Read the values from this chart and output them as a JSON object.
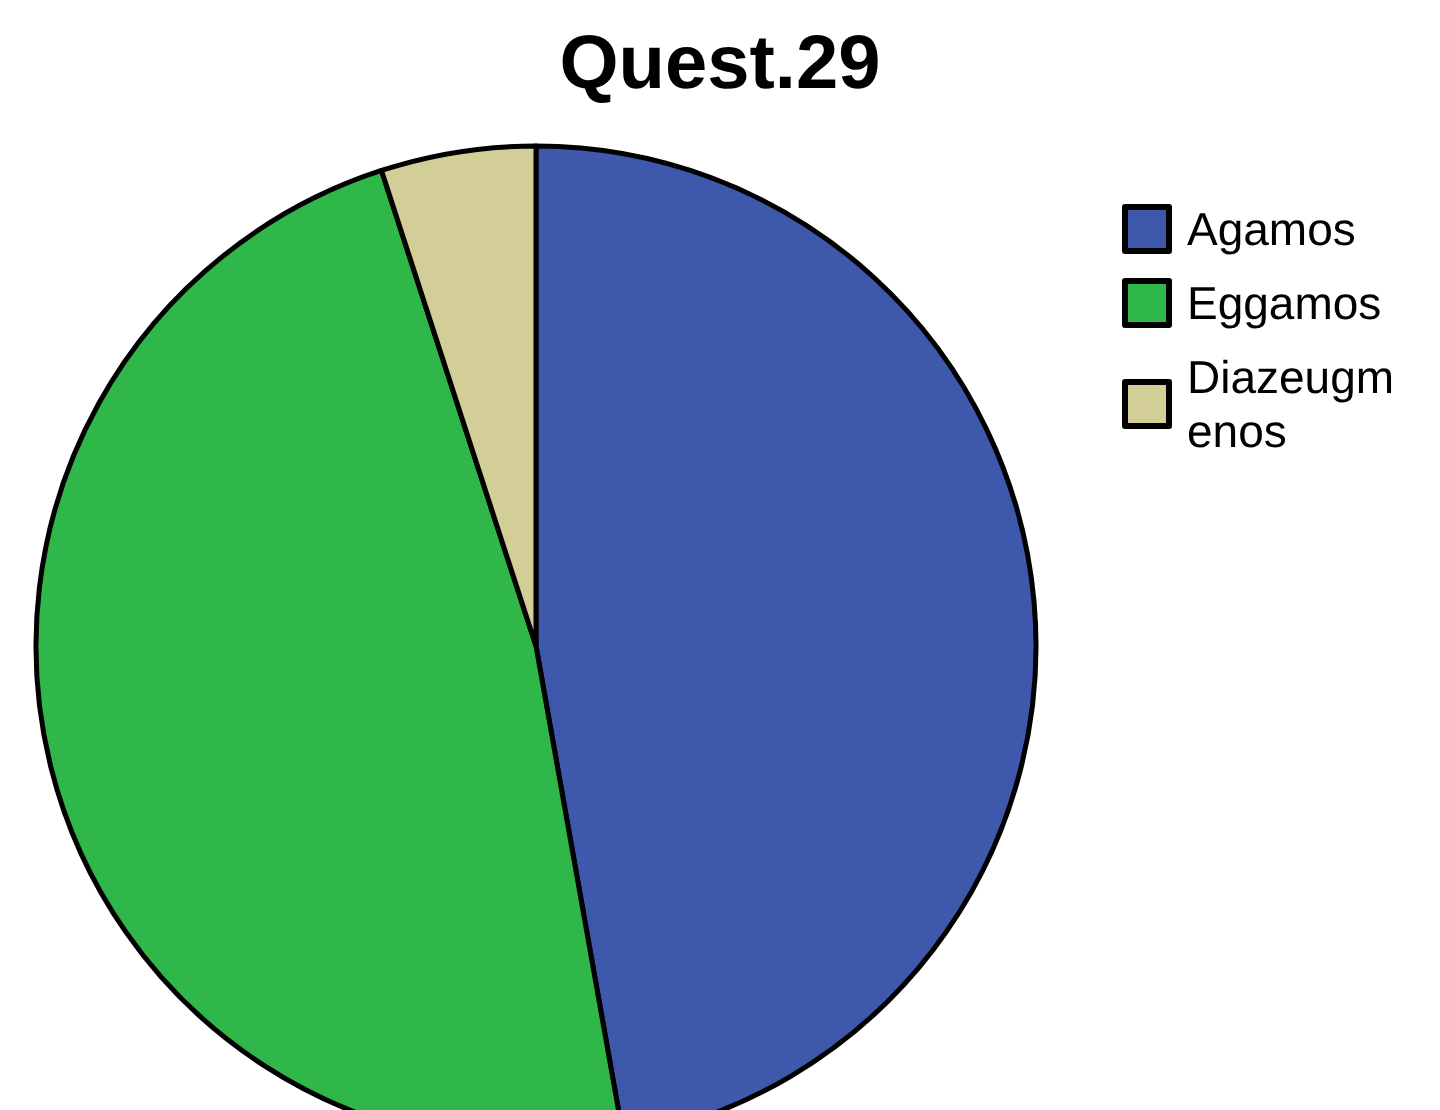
{
  "chart_data": {
    "type": "pie",
    "title": "Quest.29",
    "categories": [
      "Agamos",
      "Eggamos",
      "Diazeugmenos"
    ],
    "values": [
      47.2,
      47.8,
      5.0
    ],
    "colors": [
      "#3e58ac",
      "#30b74a",
      "#d3ce97"
    ],
    "legend": "top right"
  }
}
